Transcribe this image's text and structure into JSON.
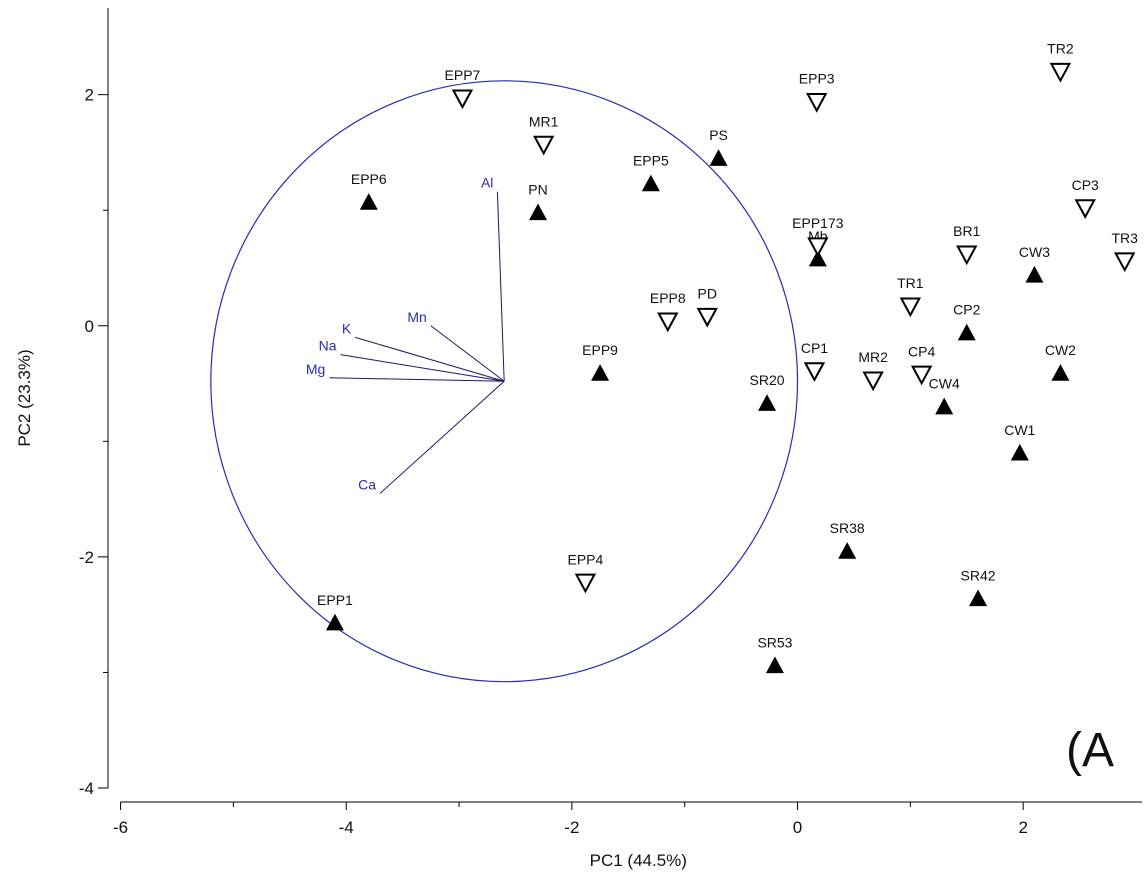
{
  "chart_data": {
    "type": "scatter",
    "xlabel": "PC1 (44.5%)",
    "ylabel": "PC2 (23.3%)",
    "xlim": [
      -6.2,
      3.0
    ],
    "ylim": [
      -4.0,
      2.75
    ],
    "xticks": [
      -6,
      -4,
      -2,
      0,
      2
    ],
    "yticks": [
      -4,
      -2,
      0,
      2
    ],
    "panel_label": "(A",
    "colors": {
      "markers": "#000000",
      "vectors": "#2b2bb5",
      "circle": "#2b2bb5"
    },
    "points": [
      {
        "label": "EPP1",
        "x": -4.1,
        "y": -2.57,
        "marker": "filled-up"
      },
      {
        "label": "EPP6",
        "x": -3.8,
        "y": 1.07,
        "marker": "filled-up"
      },
      {
        "label": "PN",
        "x": -2.3,
        "y": 0.98,
        "marker": "filled-up"
      },
      {
        "label": "EPP5",
        "x": -1.3,
        "y": 1.23,
        "marker": "filled-up"
      },
      {
        "label": "PS",
        "x": -0.7,
        "y": 1.45,
        "marker": "filled-up"
      },
      {
        "label": "EPP9",
        "x": -1.75,
        "y": -0.41,
        "marker": "filled-up"
      },
      {
        "label": "SR20",
        "x": -0.27,
        "y": -0.67,
        "marker": "filled-up"
      },
      {
        "label": "SR38",
        "x": 0.44,
        "y": -1.95,
        "marker": "filled-up"
      },
      {
        "label": "SR53",
        "x": -0.2,
        "y": -2.94,
        "marker": "filled-up"
      },
      {
        "label": "SR42",
        "x": 1.6,
        "y": -2.36,
        "marker": "filled-up"
      },
      {
        "label": "Mb",
        "x": 0.18,
        "y": 0.58,
        "marker": "filled-up"
      },
      {
        "label": "CP2",
        "x": 1.5,
        "y": -0.06,
        "marker": "filled-up"
      },
      {
        "label": "CW3",
        "x": 2.1,
        "y": 0.44,
        "marker": "filled-up"
      },
      {
        "label": "CW2",
        "x": 2.33,
        "y": -0.41,
        "marker": "filled-up"
      },
      {
        "label": "CW4",
        "x": 1.3,
        "y": -0.7,
        "marker": "filled-up"
      },
      {
        "label": "CW1",
        "x": 1.97,
        "y": -1.1,
        "marker": "filled-up"
      },
      {
        "label": "EPP7",
        "x": -2.97,
        "y": 1.97,
        "marker": "open-down"
      },
      {
        "label": "MR1",
        "x": -2.25,
        "y": 1.57,
        "marker": "open-down"
      },
      {
        "label": "EPP3",
        "x": 0.17,
        "y": 1.94,
        "marker": "open-down"
      },
      {
        "label": "TR2",
        "x": 2.33,
        "y": 2.2,
        "marker": "open-down"
      },
      {
        "label": "CP3",
        "x": 2.55,
        "y": 1.02,
        "marker": "open-down"
      },
      {
        "label": "TR3",
        "x": 2.9,
        "y": 0.56,
        "marker": "open-down"
      },
      {
        "label": "EPP173",
        "x": 0.18,
        "y": 0.69,
        "marker": "open-down"
      },
      {
        "label": "BR1",
        "x": 1.5,
        "y": 0.62,
        "marker": "open-down"
      },
      {
        "label": "TR1",
        "x": 1.0,
        "y": 0.17,
        "marker": "open-down"
      },
      {
        "label": "EPP8",
        "x": -1.15,
        "y": 0.04,
        "marker": "open-down"
      },
      {
        "label": "PD",
        "x": -0.8,
        "y": 0.08,
        "marker": "open-down"
      },
      {
        "label": "CP1",
        "x": 0.15,
        "y": -0.39,
        "marker": "open-down"
      },
      {
        "label": "MR2",
        "x": 0.67,
        "y": -0.47,
        "marker": "open-down"
      },
      {
        "label": "CP4",
        "x": 1.1,
        "y": -0.42,
        "marker": "open-down"
      },
      {
        "label": "EPP4",
        "x": -1.88,
        "y": -2.22,
        "marker": "open-down"
      }
    ],
    "vectors": [
      {
        "label": "Al",
        "x": -2.66,
        "y": 1.16
      },
      {
        "label": "Mn",
        "x": -3.25,
        "y": 0.0
      },
      {
        "label": "K",
        "x": -3.92,
        "y": -0.1
      },
      {
        "label": "Na",
        "x": -4.05,
        "y": -0.25
      },
      {
        "label": "Mg",
        "x": -4.15,
        "y": -0.45
      },
      {
        "label": "Ca",
        "x": -3.7,
        "y": -1.45
      }
    ],
    "vector_origin": {
      "x": -2.6,
      "y": -0.48
    },
    "circle": {
      "cx": -2.6,
      "cy": -0.48,
      "r": 2.6
    }
  }
}
